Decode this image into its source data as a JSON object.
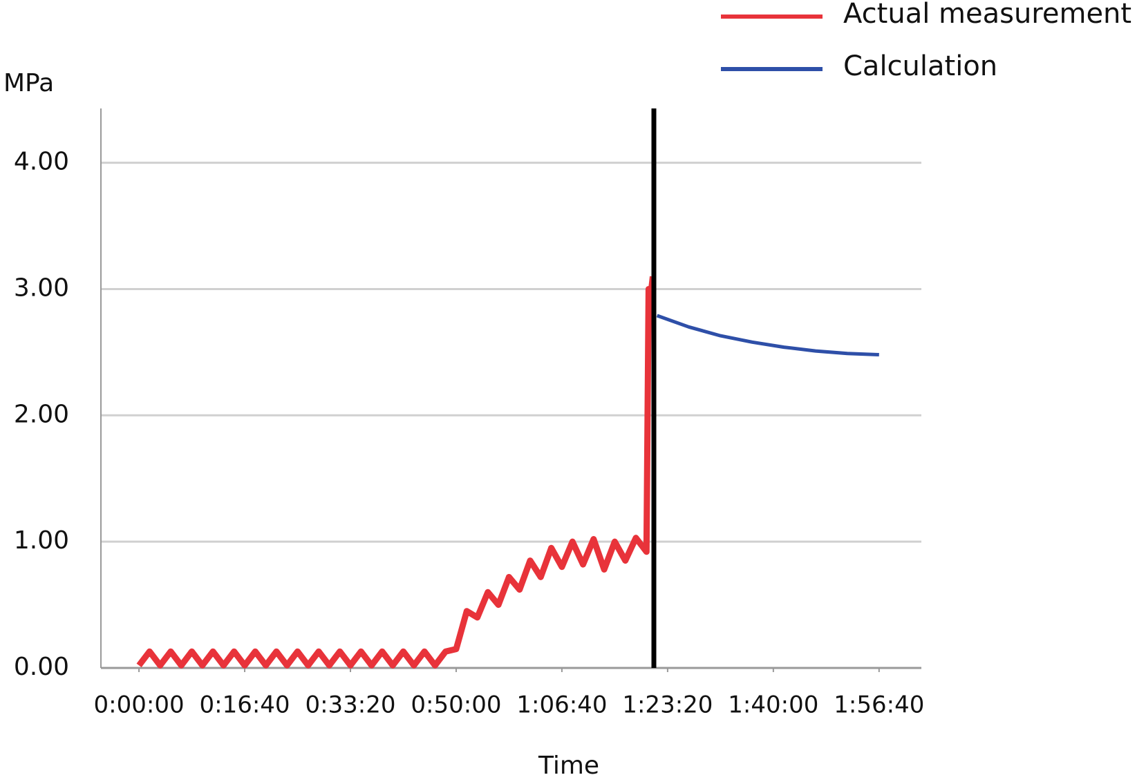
{
  "chart_data": {
    "type": "line",
    "y_label": "MPa",
    "x_label": "Time",
    "xlim": [
      -360,
      7400
    ],
    "ylim": [
      0,
      4.43
    ],
    "yticks": [
      {
        "value": 0,
        "label": "0.00"
      },
      {
        "value": 1,
        "label": "1.00"
      },
      {
        "value": 2,
        "label": "2.00"
      },
      {
        "value": 3,
        "label": "3.00"
      },
      {
        "value": 4,
        "label": "4.00"
      }
    ],
    "xticks": [
      {
        "value": 0,
        "label": "0:00:00"
      },
      {
        "value": 1000,
        "label": "0:16:40"
      },
      {
        "value": 2000,
        "label": "0:33:20"
      },
      {
        "value": 3000,
        "label": "0:50:00"
      },
      {
        "value": 4000,
        "label": "1:06:40"
      },
      {
        "value": 5000,
        "label": "1:23:20"
      },
      {
        "value": 6000,
        "label": "1:40:00"
      },
      {
        "value": 7000,
        "label": "1:56:40"
      }
    ],
    "grid": true,
    "vertical_line": {
      "x": 4870,
      "color": "#000000"
    },
    "series": [
      {
        "name": "Actual measurement",
        "color": "#e8333a",
        "x": [
          0,
          100,
          200,
          300,
          400,
          500,
          600,
          700,
          800,
          900,
          1000,
          1100,
          1200,
          1300,
          1400,
          1500,
          1600,
          1700,
          1800,
          1900,
          2000,
          2100,
          2200,
          2300,
          2400,
          2500,
          2600,
          2700,
          2800,
          2900,
          3000,
          3100,
          3200,
          3300,
          3400,
          3500,
          3600,
          3700,
          3800,
          3900,
          4000,
          4100,
          4200,
          4300,
          4400,
          4500,
          4600,
          4700,
          4800,
          4820,
          4840,
          4860
        ],
        "values": [
          0.02,
          0.13,
          0.02,
          0.13,
          0.02,
          0.13,
          0.02,
          0.13,
          0.02,
          0.13,
          0.02,
          0.13,
          0.02,
          0.13,
          0.02,
          0.13,
          0.02,
          0.13,
          0.02,
          0.13,
          0.02,
          0.13,
          0.02,
          0.13,
          0.02,
          0.13,
          0.02,
          0.13,
          0.02,
          0.13,
          0.15,
          0.45,
          0.4,
          0.6,
          0.5,
          0.72,
          0.62,
          0.85,
          0.72,
          0.95,
          0.8,
          1.0,
          0.82,
          1.02,
          0.78,
          1.0,
          0.85,
          1.03,
          0.92,
          3.0,
          2.95,
          3.1
        ]
      },
      {
        "name": "Calculation",
        "color": "#2e4fa8",
        "x": [
          4900,
          5200,
          5500,
          5800,
          6100,
          6400,
          6700,
          7000
        ],
        "values": [
          2.79,
          2.7,
          2.63,
          2.58,
          2.54,
          2.51,
          2.49,
          2.48
        ]
      }
    ]
  }
}
